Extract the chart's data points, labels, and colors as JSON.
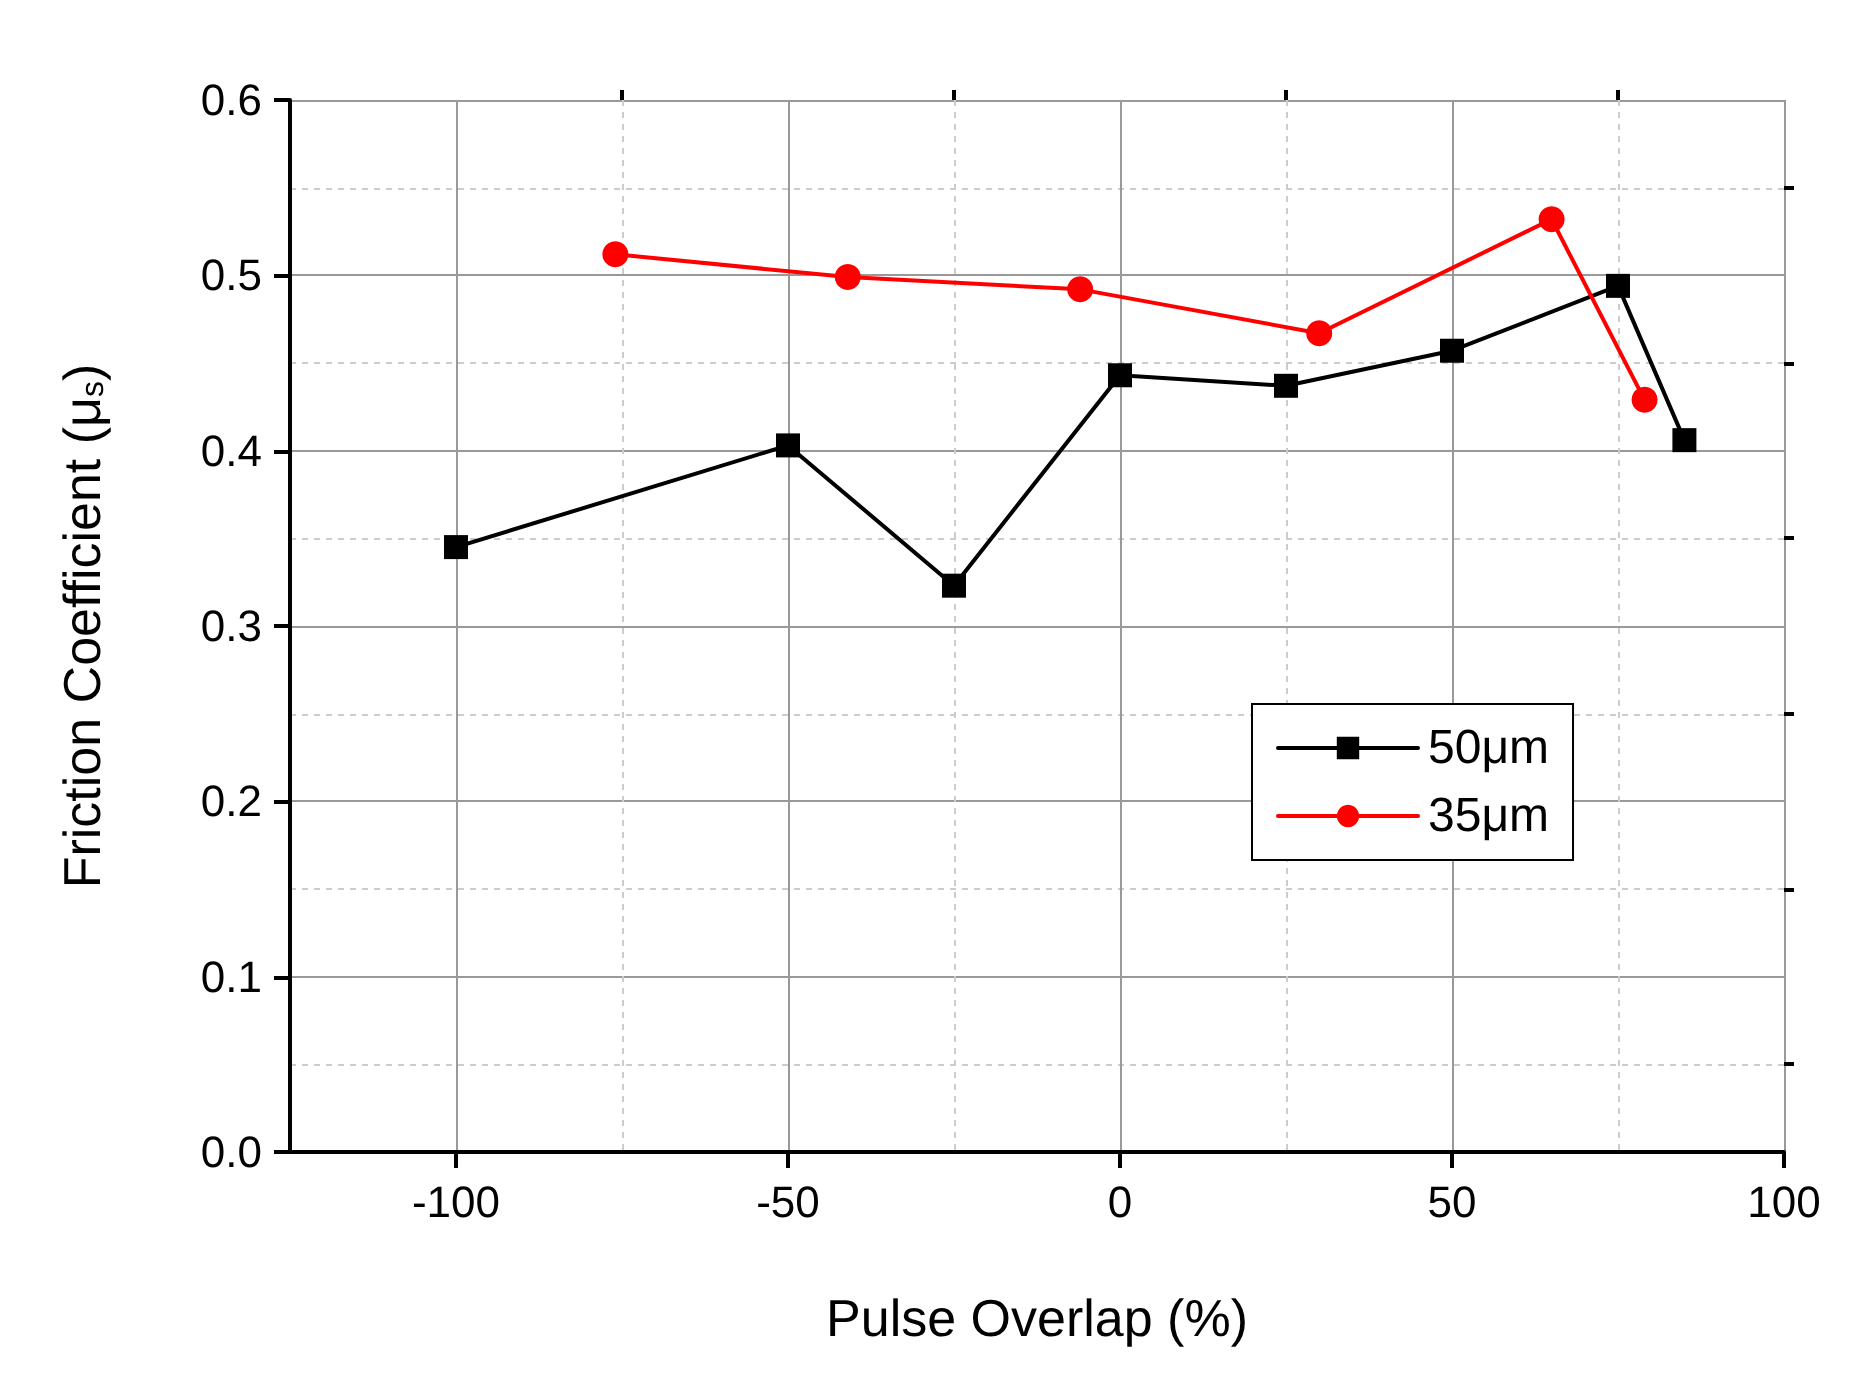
{
  "chart_data": {
    "type": "line",
    "xlabel": "Pulse Overlap (%)",
    "ylabel": "Friction Coefficient (μ$_{s}$)",
    "xlim": [
      -125,
      100
    ],
    "xticks": [
      -100,
      {
        "value": -75,
        "label": null
      },
      -50,
      {
        "value": -25,
        "label": null
      },
      0,
      {
        "value": 25,
        "label": null
      },
      50,
      {
        "value": 75,
        "label": null
      },
      100
    ],
    "ylim": [
      0,
      0.6
    ],
    "yticks": [
      "0.0",
      {
        "value": 0.05,
        "label": null
      },
      0.1,
      {
        "value": 0.15,
        "label": null
      },
      0.2,
      {
        "value": 0.25,
        "label": null
      },
      0.3,
      {
        "value": 0.35,
        "label": null
      },
      0.4,
      {
        "value": 0.45,
        "label": null
      },
      0.5,
      {
        "value": 0.55,
        "label": null
      },
      0.6
    ],
    "grid": true,
    "legend": "right",
    "line_style": "solid",
    "series": [
      {
        "name": "50μm",
        "color": "#000000",
        "marker": "square",
        "x": [
          -100,
          -50,
          -25,
          0,
          25,
          50,
          75,
          85
        ],
        "values": [
          0.345,
          0.403,
          0.323,
          0.443,
          0.437,
          0.457,
          0.494,
          0.406
        ]
      },
      {
        "name": "35μm",
        "color": "#ff0000",
        "marker": "circle",
        "x": [
          -76,
          -41,
          -6,
          30,
          65,
          79
        ],
        "values": [
          0.512,
          0.499,
          0.492,
          0.467,
          0.532,
          0.429
        ]
      }
    ]
  }
}
